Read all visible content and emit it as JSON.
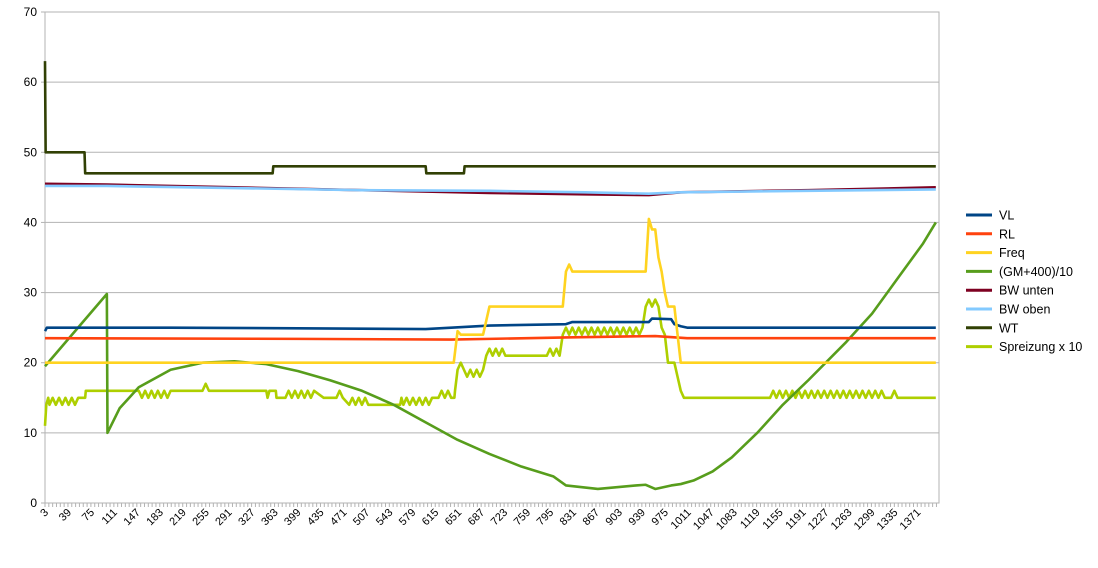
{
  "chart_data": {
    "type": "line",
    "ylim": [
      0,
      70
    ],
    "y_ticks": [
      "0",
      "10",
      "20",
      "30",
      "40",
      "50",
      "60",
      "70"
    ],
    "grid": "horizontal",
    "legend_position": "right",
    "x_ticks": [
      "3",
      "39",
      "75",
      "111",
      "147",
      "183",
      "219",
      "255",
      "291",
      "327",
      "363",
      "399",
      "435",
      "471",
      "507",
      "543",
      "579",
      "615",
      "651",
      "687",
      "723",
      "759",
      "795",
      "831",
      "867",
      "903",
      "939",
      "975",
      "1011",
      "1047",
      "1083",
      "1119",
      "1155",
      "1191",
      "1227",
      "1263",
      "1299",
      "1335",
      "1371"
    ],
    "series": [
      {
        "name": "VL",
        "color": "#004586",
        "points": [
          [
            3,
            24.5
          ],
          [
            6,
            25
          ],
          [
            200,
            25
          ],
          [
            400,
            24.9
          ],
          [
            600,
            24.8
          ],
          [
            640,
            25
          ],
          [
            700,
            25.3
          ],
          [
            820,
            25.5
          ],
          [
            830,
            25.8
          ],
          [
            950,
            25.8
          ],
          [
            955,
            26.3
          ],
          [
            985,
            26.2
          ],
          [
            990,
            25.5
          ],
          [
            1000,
            25.2
          ],
          [
            1010,
            25
          ],
          [
            1400,
            25
          ]
        ]
      },
      {
        "name": "RL",
        "color": "#ff420e",
        "points": [
          [
            3,
            23.5
          ],
          [
            400,
            23.4
          ],
          [
            640,
            23.3
          ],
          [
            700,
            23.4
          ],
          [
            820,
            23.6
          ],
          [
            960,
            23.8
          ],
          [
            1010,
            23.5
          ],
          [
            1400,
            23.5
          ]
        ]
      },
      {
        "name": "Freq",
        "color": "#ffd320",
        "points": [
          [
            3,
            20
          ],
          [
            644,
            20
          ],
          [
            650,
            24.5
          ],
          [
            655,
            24
          ],
          [
            690,
            24
          ],
          [
            700,
            28
          ],
          [
            790,
            28
          ],
          [
            800,
            28
          ],
          [
            815,
            28
          ],
          [
            820,
            33
          ],
          [
            825,
            34
          ],
          [
            830,
            33
          ],
          [
            945,
            33
          ],
          [
            950,
            40.5
          ],
          [
            955,
            39
          ],
          [
            960,
            39
          ],
          [
            965,
            35
          ],
          [
            970,
            33
          ],
          [
            975,
            30
          ],
          [
            980,
            28
          ],
          [
            990,
            28
          ],
          [
            995,
            24
          ],
          [
            1000,
            20
          ],
          [
            1400,
            20
          ]
        ]
      },
      {
        "name": "(GM+400)/10",
        "color": "#579d1c",
        "points": [
          [
            3,
            19.5
          ],
          [
            100,
            29.8
          ],
          [
            101,
            10
          ],
          [
            120,
            13.5
          ],
          [
            150,
            16.5
          ],
          [
            200,
            19
          ],
          [
            250,
            20
          ],
          [
            300,
            20.2
          ],
          [
            350,
            19.8
          ],
          [
            400,
            18.8
          ],
          [
            450,
            17.5
          ],
          [
            500,
            16
          ],
          [
            550,
            14
          ],
          [
            600,
            11.5
          ],
          [
            650,
            9
          ],
          [
            700,
            7
          ],
          [
            750,
            5.2
          ],
          [
            800,
            3.8
          ],
          [
            820,
            2.5
          ],
          [
            870,
            2
          ],
          [
            930,
            2.5
          ],
          [
            945,
            2.6
          ],
          [
            960,
            2
          ],
          [
            985,
            2.5
          ],
          [
            1000,
            2.7
          ],
          [
            1020,
            3.2
          ],
          [
            1050,
            4.5
          ],
          [
            1080,
            6.5
          ],
          [
            1120,
            10
          ],
          [
            1160,
            14
          ],
          [
            1200,
            17.5
          ],
          [
            1260,
            23
          ],
          [
            1300,
            27
          ],
          [
            1340,
            32
          ],
          [
            1380,
            37
          ],
          [
            1400,
            40
          ]
        ]
      },
      {
        "name": "BW unten",
        "color": "#7e0021",
        "points": [
          [
            3,
            45.5
          ],
          [
            100,
            45.4
          ],
          [
            300,
            45
          ],
          [
            500,
            44.6
          ],
          [
            700,
            44.2
          ],
          [
            850,
            44
          ],
          [
            950,
            43.9
          ],
          [
            1000,
            44.3
          ],
          [
            1200,
            44.6
          ],
          [
            1400,
            45
          ]
        ]
      },
      {
        "name": "BW oben",
        "color": "#83caff",
        "points": [
          [
            3,
            45.2
          ],
          [
            100,
            45.2
          ],
          [
            300,
            44.9
          ],
          [
            500,
            44.6
          ],
          [
            700,
            44.5
          ],
          [
            850,
            44.3
          ],
          [
            950,
            44.1
          ],
          [
            1000,
            44.3
          ],
          [
            1200,
            44.5
          ],
          [
            1400,
            44.7
          ]
        ]
      },
      {
        "name": "WT",
        "color": "#314004",
        "points": [
          [
            3,
            63
          ],
          [
            4,
            50
          ],
          [
            65,
            50
          ],
          [
            66,
            47
          ],
          [
            360,
            47
          ],
          [
            361,
            48
          ],
          [
            600,
            48
          ],
          [
            601,
            47
          ],
          [
            660,
            47
          ],
          [
            661,
            48
          ],
          [
            1400,
            48
          ]
        ]
      },
      {
        "name": "Spreizung x 10",
        "color": "#aecf00",
        "points": [
          [
            3,
            11
          ],
          [
            5,
            14
          ],
          [
            8,
            15
          ],
          [
            10,
            14
          ],
          [
            15,
            15
          ],
          [
            20,
            14
          ],
          [
            25,
            15
          ],
          [
            30,
            14
          ],
          [
            35,
            15
          ],
          [
            40,
            14
          ],
          [
            45,
            15
          ],
          [
            50,
            14
          ],
          [
            55,
            15
          ],
          [
            60,
            15
          ],
          [
            66,
            15
          ],
          [
            67,
            16
          ],
          [
            150,
            16
          ],
          [
            155,
            15
          ],
          [
            160,
            16
          ],
          [
            165,
            15
          ],
          [
            170,
            16
          ],
          [
            175,
            15
          ],
          [
            180,
            16
          ],
          [
            185,
            15
          ],
          [
            190,
            16
          ],
          [
            195,
            15
          ],
          [
            200,
            16
          ],
          [
            205,
            16
          ],
          [
            250,
            16
          ],
          [
            255,
            17
          ],
          [
            260,
            16
          ],
          [
            350,
            16
          ],
          [
            352,
            15
          ],
          [
            355,
            16
          ],
          [
            365,
            16
          ],
          [
            366,
            15
          ],
          [
            380,
            15
          ],
          [
            385,
            16
          ],
          [
            390,
            15
          ],
          [
            395,
            16
          ],
          [
            400,
            15
          ],
          [
            405,
            16
          ],
          [
            410,
            15
          ],
          [
            415,
            16
          ],
          [
            420,
            15
          ],
          [
            425,
            16
          ],
          [
            440,
            15
          ],
          [
            460,
            15
          ],
          [
            465,
            16
          ],
          [
            470,
            15
          ],
          [
            480,
            14
          ],
          [
            485,
            15
          ],
          [
            490,
            14
          ],
          [
            495,
            15
          ],
          [
            500,
            14
          ],
          [
            505,
            15
          ],
          [
            510,
            14
          ],
          [
            520,
            14
          ],
          [
            540,
            14
          ],
          [
            560,
            14
          ],
          [
            562,
            15
          ],
          [
            565,
            14
          ],
          [
            570,
            15
          ],
          [
            575,
            14
          ],
          [
            580,
            15
          ],
          [
            585,
            14
          ],
          [
            590,
            15
          ],
          [
            595,
            14
          ],
          [
            600,
            15
          ],
          [
            605,
            14
          ],
          [
            610,
            15
          ],
          [
            615,
            15
          ],
          [
            620,
            15
          ],
          [
            625,
            16
          ],
          [
            630,
            15
          ],
          [
            635,
            16
          ],
          [
            640,
            15
          ],
          [
            645,
            15
          ],
          [
            646,
            16
          ],
          [
            650,
            19
          ],
          [
            655,
            20
          ],
          [
            660,
            19
          ],
          [
            665,
            18
          ],
          [
            670,
            19
          ],
          [
            675,
            18
          ],
          [
            680,
            19
          ],
          [
            685,
            18
          ],
          [
            690,
            19
          ],
          [
            695,
            21
          ],
          [
            700,
            22
          ],
          [
            705,
            21
          ],
          [
            710,
            22
          ],
          [
            715,
            21
          ],
          [
            720,
            22
          ],
          [
            725,
            21
          ],
          [
            730,
            21
          ],
          [
            790,
            21
          ],
          [
            795,
            22
          ],
          [
            800,
            21
          ],
          [
            805,
            22
          ],
          [
            810,
            21
          ],
          [
            815,
            24
          ],
          [
            820,
            25
          ],
          [
            825,
            24
          ],
          [
            830,
            25
          ],
          [
            835,
            24
          ],
          [
            840,
            25
          ],
          [
            845,
            24
          ],
          [
            850,
            25
          ],
          [
            855,
            24
          ],
          [
            860,
            25
          ],
          [
            865,
            24
          ],
          [
            870,
            25
          ],
          [
            875,
            24
          ],
          [
            880,
            25
          ],
          [
            885,
            24
          ],
          [
            890,
            25
          ],
          [
            895,
            24
          ],
          [
            900,
            25
          ],
          [
            905,
            24
          ],
          [
            910,
            25
          ],
          [
            915,
            24
          ],
          [
            920,
            25
          ],
          [
            925,
            24
          ],
          [
            930,
            25
          ],
          [
            935,
            24
          ],
          [
            940,
            25
          ],
          [
            945,
            28
          ],
          [
            950,
            29
          ],
          [
            955,
            28
          ],
          [
            960,
            29
          ],
          [
            965,
            28
          ],
          [
            970,
            25
          ],
          [
            975,
            24
          ],
          [
            980,
            20
          ],
          [
            985,
            20
          ],
          [
            990,
            20
          ],
          [
            995,
            18
          ],
          [
            1000,
            16
          ],
          [
            1005,
            15
          ],
          [
            1030,
            15
          ],
          [
            1100,
            15
          ],
          [
            1140,
            15
          ],
          [
            1145,
            16
          ],
          [
            1150,
            15
          ],
          [
            1155,
            16
          ],
          [
            1160,
            15
          ],
          [
            1165,
            16
          ],
          [
            1170,
            15
          ],
          [
            1175,
            16
          ],
          [
            1180,
            15
          ],
          [
            1185,
            16
          ],
          [
            1190,
            15
          ],
          [
            1195,
            16
          ],
          [
            1200,
            15
          ],
          [
            1205,
            16
          ],
          [
            1210,
            15
          ],
          [
            1215,
            16
          ],
          [
            1220,
            15
          ],
          [
            1225,
            16
          ],
          [
            1230,
            15
          ],
          [
            1235,
            16
          ],
          [
            1240,
            15
          ],
          [
            1245,
            16
          ],
          [
            1250,
            15
          ],
          [
            1255,
            16
          ],
          [
            1260,
            15
          ],
          [
            1265,
            16
          ],
          [
            1270,
            15
          ],
          [
            1275,
            16
          ],
          [
            1280,
            15
          ],
          [
            1285,
            16
          ],
          [
            1290,
            15
          ],
          [
            1295,
            16
          ],
          [
            1300,
            15
          ],
          [
            1305,
            16
          ],
          [
            1310,
            15
          ],
          [
            1315,
            16
          ],
          [
            1320,
            15
          ],
          [
            1330,
            15
          ],
          [
            1335,
            16
          ],
          [
            1340,
            15
          ],
          [
            1400,
            15
          ]
        ]
      }
    ]
  }
}
